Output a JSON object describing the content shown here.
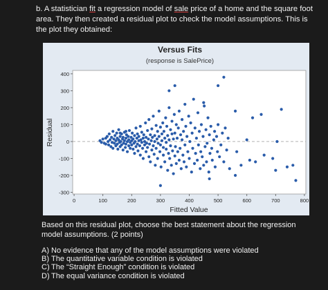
{
  "question": {
    "label": "b.",
    "intro_parts": [
      "A statistician ",
      "fit",
      " a regression model of ",
      "sale",
      " price of a home and the square foot area. They then created a residual plot to check the model assumptions.  This is the plot they obtained:"
    ],
    "prompt": "Based on this residual plot, choose the best statement about the regression model assumptions. (2 points)",
    "options": [
      {
        "letter": "A)",
        "text": "No evidence that any of the model assumptions were violated"
      },
      {
        "letter": "B)",
        "text": "The quantitative variable condition is violated"
      },
      {
        "letter": "C)",
        "text": "The “Straight Enough” condition is violated"
      },
      {
        "letter": "D)",
        "text": "The equal variance condition is violated"
      }
    ]
  },
  "chart_data": {
    "type": "scatter",
    "title": "Versus Fits",
    "subtitle": "(response is SalePrice)",
    "xlabel": "Fitted Value",
    "ylabel": "Residual",
    "xlim": [
      -5,
      805
    ],
    "ylim": [
      -310,
      420
    ],
    "xticks": [
      0,
      100,
      200,
      300,
      400,
      500,
      600,
      700,
      800
    ],
    "yticks": [
      -300,
      -200,
      -100,
      0,
      100,
      200,
      300,
      400
    ],
    "reference_line": {
      "y": 0,
      "style": "dashed",
      "color": "#a6a6a6"
    },
    "grid": false,
    "colors": {
      "points": "#2a5caa",
      "plot_area": "#ffffff",
      "frame": "#e3eaf2"
    },
    "points": [
      [
        90,
        5
      ],
      [
        95,
        -5
      ],
      [
        100,
        15
      ],
      [
        105,
        -10
      ],
      [
        110,
        20
      ],
      [
        110,
        -15
      ],
      [
        115,
        30
      ],
      [
        118,
        0
      ],
      [
        120,
        -20
      ],
      [
        122,
        45
      ],
      [
        125,
        10
      ],
      [
        128,
        -30
      ],
      [
        130,
        25
      ],
      [
        132,
        -5
      ],
      [
        135,
        60
      ],
      [
        135,
        -40
      ],
      [
        138,
        15
      ],
      [
        140,
        -10
      ],
      [
        142,
        35
      ],
      [
        145,
        -25
      ],
      [
        145,
        5
      ],
      [
        148,
        50
      ],
      [
        150,
        -15
      ],
      [
        150,
        20
      ],
      [
        152,
        -45
      ],
      [
        155,
        10
      ],
      [
        155,
        70
      ],
      [
        158,
        -5
      ],
      [
        160,
        30
      ],
      [
        160,
        -30
      ],
      [
        162,
        0
      ],
      [
        165,
        45
      ],
      [
        165,
        -20
      ],
      [
        168,
        15
      ],
      [
        170,
        -50
      ],
      [
        170,
        25
      ],
      [
        172,
        -10
      ],
      [
        175,
        55
      ],
      [
        175,
        5
      ],
      [
        178,
        -35
      ],
      [
        180,
        20
      ],
      [
        180,
        -15
      ],
      [
        182,
        40
      ],
      [
        185,
        0
      ],
      [
        185,
        -60
      ],
      [
        188,
        30
      ],
      [
        190,
        -25
      ],
      [
        190,
        10
      ],
      [
        192,
        65
      ],
      [
        195,
        -5
      ],
      [
        195,
        -40
      ],
      [
        198,
        25
      ],
      [
        200,
        -20
      ],
      [
        200,
        5
      ],
      [
        202,
        50
      ],
      [
        205,
        -45
      ],
      [
        205,
        15
      ],
      [
        208,
        -10
      ],
      [
        210,
        35
      ],
      [
        210,
        -70
      ],
      [
        212,
        0
      ],
      [
        215,
        80
      ],
      [
        215,
        -30
      ],
      [
        218,
        20
      ],
      [
        220,
        -15
      ],
      [
        220,
        45
      ],
      [
        222,
        -55
      ],
      [
        225,
        5
      ],
      [
        225,
        30
      ],
      [
        228,
        -25
      ],
      [
        230,
        90
      ],
      [
        230,
        -80
      ],
      [
        232,
        10
      ],
      [
        235,
        -5
      ],
      [
        235,
        55
      ],
      [
        238,
        -40
      ],
      [
        240,
        20
      ],
      [
        240,
        -100
      ],
      [
        242,
        40
      ],
      [
        245,
        -20
      ],
      [
        245,
        0
      ],
      [
        248,
        110
      ],
      [
        250,
        -60
      ],
      [
        250,
        25
      ],
      [
        252,
        -10
      ],
      [
        255,
        65
      ],
      [
        255,
        -35
      ],
      [
        258,
        15
      ],
      [
        260,
        -90
      ],
      [
        260,
        130
      ],
      [
        262,
        -15
      ],
      [
        265,
        40
      ],
      [
        265,
        -120
      ],
      [
        268,
        5
      ],
      [
        270,
        75
      ],
      [
        270,
        -50
      ],
      [
        272,
        25
      ],
      [
        275,
        -25
      ],
      [
        275,
        150
      ],
      [
        278,
        -75
      ],
      [
        280,
        35
      ],
      [
        280,
        0
      ],
      [
        282,
        -140
      ],
      [
        285,
        95
      ],
      [
        285,
        -40
      ],
      [
        288,
        15
      ],
      [
        290,
        60
      ],
      [
        290,
        -100
      ],
      [
        292,
        -10
      ],
      [
        295,
        180
      ],
      [
        295,
        30
      ],
      [
        298,
        -60
      ],
      [
        300,
        85
      ],
      [
        300,
        -20
      ],
      [
        302,
        -150
      ],
      [
        305,
        45
      ],
      [
        305,
        5
      ],
      [
        308,
        110
      ],
      [
        310,
        -35
      ],
      [
        310,
        -80
      ],
      [
        312,
        60
      ],
      [
        315,
        20
      ],
      [
        315,
        -120
      ],
      [
        318,
        140
      ],
      [
        320,
        -45
      ],
      [
        320,
        -5
      ],
      [
        322,
        90
      ],
      [
        325,
        -170
      ],
      [
        325,
        35
      ],
      [
        328,
        -70
      ],
      [
        330,
        200
      ],
      [
        330,
        10
      ],
      [
        332,
        -100
      ],
      [
        335,
        70
      ],
      [
        335,
        -25
      ],
      [
        338,
        -140
      ],
      [
        340,
        45
      ],
      [
        340,
        120
      ],
      [
        342,
        -55
      ],
      [
        345,
        -190
      ],
      [
        345,
        15
      ],
      [
        348,
        160
      ],
      [
        350,
        -85
      ],
      [
        350,
        50
      ],
      [
        352,
        -30
      ],
      [
        355,
        100
      ],
      [
        355,
        -130
      ],
      [
        358,
        20
      ],
      [
        360,
        -60
      ],
      [
        362,
        80
      ],
      [
        365,
        -110
      ],
      [
        365,
        180
      ],
      [
        368,
        -40
      ],
      [
        370,
        40
      ],
      [
        372,
        -160
      ],
      [
        375,
        10
      ],
      [
        375,
        130
      ],
      [
        378,
        -80
      ],
      [
        380,
        60
      ],
      [
        382,
        -120
      ],
      [
        385,
        -20
      ],
      [
        385,
        220
      ],
      [
        388,
        90
      ],
      [
        390,
        -150
      ],
      [
        392,
        30
      ],
      [
        395,
        -60
      ],
      [
        398,
        150
      ],
      [
        400,
        -100
      ],
      [
        402,
        0
      ],
      [
        405,
        110
      ],
      [
        408,
        -180
      ],
      [
        410,
        50
      ],
      [
        412,
        -40
      ],
      [
        415,
        250
      ],
      [
        418,
        -130
      ],
      [
        420,
        80
      ],
      [
        422,
        -70
      ],
      [
        425,
        20
      ],
      [
        428,
        -110
      ],
      [
        430,
        170
      ],
      [
        432,
        -20
      ],
      [
        435,
        60
      ],
      [
        438,
        -160
      ],
      [
        440,
        -60
      ],
      [
        442,
        100
      ],
      [
        445,
        -90
      ],
      [
        448,
        30
      ],
      [
        450,
        -140
      ],
      [
        452,
        210
      ],
      [
        455,
        -30
      ],
      [
        458,
        70
      ],
      [
        460,
        -120
      ],
      [
        462,
        -10
      ],
      [
        465,
        140
      ],
      [
        468,
        -180
      ],
      [
        470,
        40
      ],
      [
        472,
        -70
      ],
      [
        475,
        90
      ],
      [
        478,
        -40
      ],
      [
        480,
        -110
      ],
      [
        485,
        10
      ],
      [
        488,
        60
      ],
      [
        490,
        -150
      ],
      [
        495,
        30
      ],
      [
        498,
        -60
      ],
      [
        500,
        100
      ],
      [
        505,
        -90
      ],
      [
        510,
        -20
      ],
      [
        515,
        50
      ],
      [
        520,
        -120
      ],
      [
        525,
        80
      ],
      [
        530,
        -50
      ],
      [
        535,
        20
      ],
      [
        540,
        -160
      ],
      [
        560,
        180
      ],
      [
        565,
        -60
      ],
      [
        580,
        -140
      ],
      [
        600,
        10
      ],
      [
        630,
        -120
      ],
      [
        650,
        160
      ],
      [
        660,
        -80
      ],
      [
        690,
        -100
      ],
      [
        705,
        0
      ],
      [
        720,
        190
      ],
      [
        740,
        -150
      ],
      [
        760,
        -140
      ],
      [
        770,
        -230
      ],
      [
        700,
        -170
      ],
      [
        610,
        -110
      ],
      [
        620,
        140
      ],
      [
        520,
        380
      ],
      [
        350,
        330
      ],
      [
        330,
        300
      ],
      [
        450,
        230
      ],
      [
        560,
        -200
      ],
      [
        500,
        330
      ],
      [
        470,
        -220
      ],
      [
        300,
        -260
      ],
      [
        180,
        60
      ],
      [
        160,
        50
      ]
    ]
  }
}
